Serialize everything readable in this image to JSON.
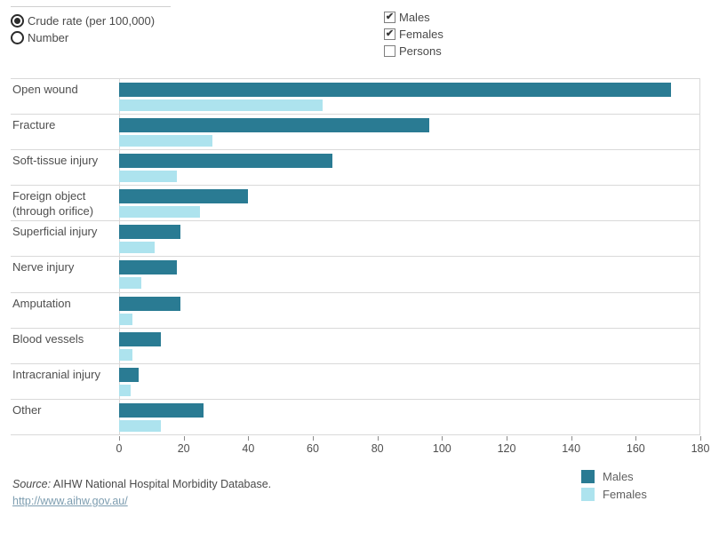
{
  "controls": {
    "rate_selector": {
      "options": [
        {
          "label": "Crude rate (per 100,000)",
          "selected": true
        },
        {
          "label": "Number",
          "selected": false
        }
      ]
    },
    "sex_filter": {
      "options": [
        {
          "label": "Males",
          "checked": true
        },
        {
          "label": "Females",
          "checked": true
        },
        {
          "label": "Persons",
          "checked": false
        }
      ]
    }
  },
  "chart_data": {
    "type": "bar",
    "orientation": "horizontal",
    "title": "",
    "xlabel": "",
    "ylabel": "",
    "xlim": [
      0,
      180
    ],
    "xticks": [
      0,
      20,
      40,
      60,
      80,
      100,
      120,
      140,
      160,
      180
    ],
    "grid": "row-borders-only",
    "legend_position": "bottom-right",
    "categories": [
      "Open wound",
      "Fracture",
      "Soft-tissue injury",
      "Foreign object (through orifice)",
      "Superficial injury",
      "Nerve injury",
      "Amputation",
      "Blood vessels",
      "Intracranial injury",
      "Other"
    ],
    "series": [
      {
        "name": "Males",
        "color": "#2a7b93",
        "values": [
          171,
          96,
          66,
          40,
          19,
          18,
          19,
          13,
          6,
          26
        ]
      },
      {
        "name": "Females",
        "color": "#ade3ee",
        "values": [
          63,
          29,
          18,
          25,
          11,
          7,
          4,
          4,
          3.5,
          13
        ]
      }
    ]
  },
  "legend": {
    "items": [
      {
        "label": "Males",
        "color": "#2a7b93"
      },
      {
        "label": "Females",
        "color": "#ade3ee"
      }
    ]
  },
  "footer": {
    "source_label": "Source:",
    "source_text": " AIHW National Hospital Morbidity Database.",
    "link_text": "http://www.aihw.gov.au/"
  },
  "icons": {
    "checkmark": "✔"
  }
}
